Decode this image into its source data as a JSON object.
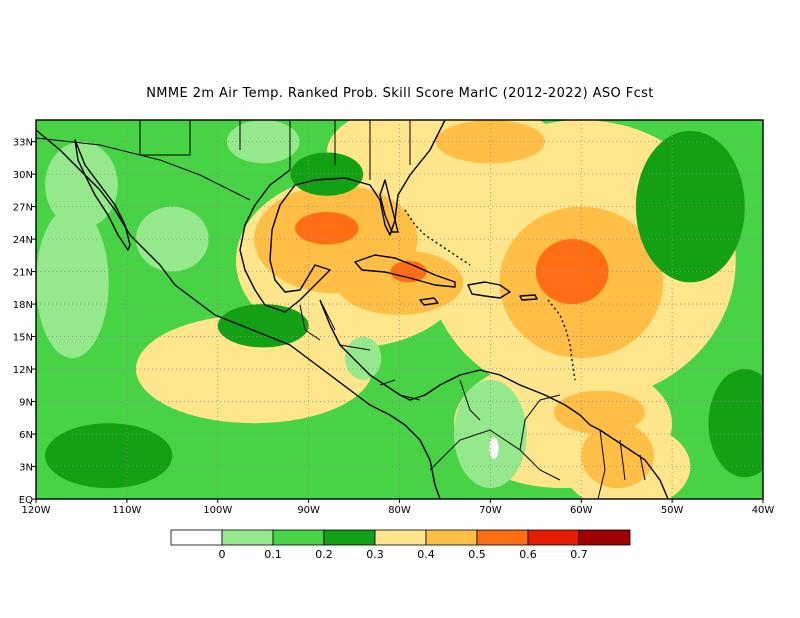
{
  "title": "NMME  2m Air Temp. Ranked Prob. Skill Score MarIC (2012-2022) ASO Fcst",
  "map": {
    "lon_range": [
      -120,
      -40
    ],
    "lat_range": [
      0,
      35
    ],
    "x_ticks": [
      {
        "value": -120,
        "label": "120W"
      },
      {
        "value": -110,
        "label": "110W"
      },
      {
        "value": -100,
        "label": "100W"
      },
      {
        "value": -90,
        "label": "90W"
      },
      {
        "value": -80,
        "label": "80W"
      },
      {
        "value": -70,
        "label": "70W"
      },
      {
        "value": -60,
        "label": "60W"
      },
      {
        "value": -50,
        "label": "50W"
      },
      {
        "value": -40,
        "label": "40W"
      }
    ],
    "y_ticks": [
      {
        "value": 0,
        "label": "EQ"
      },
      {
        "value": 3,
        "label": "3N"
      },
      {
        "value": 6,
        "label": "6N"
      },
      {
        "value": 9,
        "label": "9N"
      },
      {
        "value": 12,
        "label": "12N"
      },
      {
        "value": 15,
        "label": "15N"
      },
      {
        "value": 18,
        "label": "18N"
      },
      {
        "value": 21,
        "label": "21N"
      },
      {
        "value": 24,
        "label": "24N"
      },
      {
        "value": 27,
        "label": "27N"
      },
      {
        "value": 30,
        "label": "30N"
      },
      {
        "value": 33,
        "label": "33N"
      }
    ],
    "gridlines": "dotted"
  },
  "colorbar": {
    "bins": [
      {
        "color": "#ffffff"
      },
      {
        "color": "#96e88c"
      },
      {
        "color": "#48d246"
      },
      {
        "color": "#14a014"
      },
      {
        "color": "#ffe68c"
      },
      {
        "color": "#ffbe46"
      },
      {
        "color": "#ff6e14"
      },
      {
        "color": "#e61e00"
      },
      {
        "color": "#a00000"
      }
    ],
    "labels": [
      "0",
      "0.1",
      "0.2",
      "0.3",
      "0.4",
      "0.5",
      "0.6",
      "0.7"
    ]
  },
  "fields": [
    {
      "level": "0.4",
      "color": "#ffe68c",
      "blobs": [
        {
          "lon": -60,
          "lat": 22,
          "rlon": 17,
          "rlat": 13
        },
        {
          "lon": -75,
          "lat": 32,
          "rlon": 13,
          "rlat": 5
        },
        {
          "lon": -85,
          "lat": 22,
          "rlon": 13,
          "rlat": 8
        },
        {
          "lon": -96,
          "lat": 12,
          "rlon": 13,
          "rlat": 5
        },
        {
          "lon": -62,
          "lat": 7,
          "rlon": 12,
          "rlat": 6
        },
        {
          "lon": -55,
          "lat": 3,
          "rlon": 7,
          "rlat": 4
        }
      ]
    },
    {
      "level": "0.5",
      "color": "#ffbe46",
      "blobs": [
        {
          "lon": -87,
          "lat": 24,
          "rlon": 9,
          "rlat": 5
        },
        {
          "lon": -80,
          "lat": 20,
          "rlon": 7,
          "rlat": 3
        },
        {
          "lon": -60,
          "lat": 20,
          "rlon": 9,
          "rlat": 7
        },
        {
          "lon": -70,
          "lat": 33,
          "rlon": 6,
          "rlat": 2
        },
        {
          "lon": -58,
          "lat": 8,
          "rlon": 5,
          "rlat": 2
        },
        {
          "lon": -56,
          "lat": 4,
          "rlon": 4,
          "rlat": 3
        }
      ]
    },
    {
      "level": "0.6",
      "color": "#ff6e14",
      "blobs": [
        {
          "lon": -88,
          "lat": 25,
          "rlon": 3.5,
          "rlat": 1.5
        },
        {
          "lon": -61,
          "lat": 21,
          "rlon": 4,
          "rlat": 3
        },
        {
          "lon": -79,
          "lat": 21,
          "rlon": 2,
          "rlat": 1
        }
      ]
    },
    {
      "level": "0.1",
      "color": "#96e88c",
      "blobs": [
        {
          "lon": -116,
          "lat": 20,
          "rlon": 4,
          "rlat": 7
        },
        {
          "lon": -115,
          "lat": 29,
          "rlon": 4,
          "rlat": 4
        },
        {
          "lon": -70,
          "lat": 6,
          "rlon": 4,
          "rlat": 5
        },
        {
          "lon": -105,
          "lat": 24,
          "rlon": 4,
          "rlat": 3
        },
        {
          "lon": -95,
          "lat": 33,
          "rlon": 4,
          "rlat": 2
        },
        {
          "lon": -84,
          "lat": 13,
          "rlon": 2,
          "rlat": 2
        }
      ]
    },
    {
      "level": "0.3",
      "color": "#14a014",
      "blobs": [
        {
          "lon": -112,
          "lat": 4,
          "rlon": 7,
          "rlat": 3
        },
        {
          "lon": -95,
          "lat": 16,
          "rlon": 5,
          "rlat": 2
        },
        {
          "lon": -88,
          "lat": 30,
          "rlon": 4,
          "rlat": 2
        },
        {
          "lon": -48,
          "lat": 27,
          "rlon": 6,
          "rlat": 7
        },
        {
          "lon": -42,
          "lat": 7,
          "rlon": 4,
          "rlat": 5
        }
      ]
    },
    {
      "level": "0",
      "color": "#ffffff",
      "blobs": [
        {
          "lon": -69.6,
          "lat": 4.7,
          "rlon": 0.5,
          "rlat": 1
        }
      ]
    }
  ]
}
